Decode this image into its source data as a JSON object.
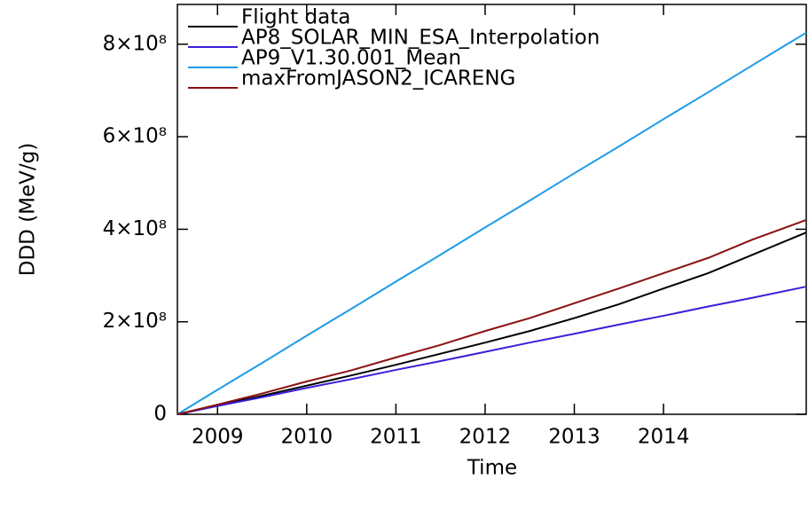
{
  "chart_data": {
    "type": "line",
    "x_label": "Time",
    "y_label": "DDD (MeV/g)",
    "x": [
      2008.55,
      2009,
      2009.5,
      2010,
      2010.5,
      2011,
      2011.5,
      2012,
      2012.5,
      2013,
      2013.5,
      2014,
      2014.5,
      2015,
      2015.6
    ],
    "xlim": [
      2008.55,
      2015.6
    ],
    "xticks": [
      2009,
      2010,
      2011,
      2012,
      2013,
      2014
    ],
    "ylim": [
      0,
      886000000
    ],
    "yticks": [
      0,
      {
        "value": 200000000,
        "label": "2×10⁸"
      },
      {
        "value": 400000000,
        "label": "4×10⁸"
      },
      {
        "value": 600000000,
        "label": "6×10⁸"
      },
      {
        "value": 800000000,
        "label": "8×10⁸"
      }
    ],
    "legend": "top-left",
    "series": [
      {
        "name": "Flight data",
        "color": "#000000",
        "values": [
          0,
          19000000,
          40000000,
          62000000,
          84000000,
          107000000,
          131000000,
          155000000,
          180000000,
          208000000,
          238000000,
          272000000,
          305000000,
          345000000,
          393000000
        ]
      },
      {
        "name": "AP8_SOLAR_MIN_ESA_Interpolation",
        "color": "#3a1fd8",
        "values": [
          0,
          18000000,
          37000000,
          57000000,
          76000000,
          96000000,
          115000000,
          135000000,
          155000000,
          174000000,
          194000000,
          213000000,
          233000000,
          252000000,
          276000000
        ]
      },
      {
        "name": "AP9_V1.30.001_Mean",
        "color": "#1e9be8",
        "values": [
          0,
          53000000,
          111000000,
          170000000,
          228000000,
          287000000,
          345000000,
          404000000,
          462000000,
          521000000,
          579000000,
          638000000,
          696000000,
          755000000,
          825000000
        ]
      },
      {
        "name": "maxFromJASON2_ICARENG",
        "color": "#8b1010",
        "values": [
          0,
          21000000,
          45000000,
          71000000,
          95000000,
          123000000,
          150000000,
          180000000,
          208000000,
          240000000,
          272000000,
          305000000,
          338000000,
          378000000,
          420000000
        ]
      }
    ]
  }
}
